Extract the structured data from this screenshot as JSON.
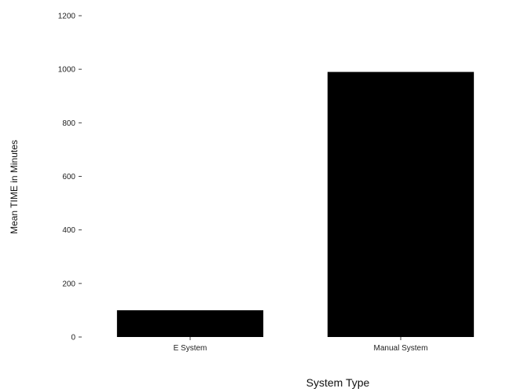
{
  "chart_data": {
    "type": "bar",
    "title": "",
    "categories": [
      "E System",
      "Manual System"
    ],
    "values": [
      100,
      990
    ],
    "xlabel": "System Type",
    "ylabel": "Mean TIME in Minutes",
    "ylim": [
      0,
      1200
    ],
    "yticks": [
      0,
      200,
      400,
      600,
      800,
      1000,
      1200
    ],
    "ytick_labels": [
      "0",
      "200",
      "400",
      "600",
      "800",
      "1000",
      "1200"
    ],
    "grid": false,
    "legend": "none",
    "colors": {
      "bar": "#000000",
      "text": "#222222",
      "tick_mark": "#444444",
      "background": "#ffffff"
    }
  }
}
